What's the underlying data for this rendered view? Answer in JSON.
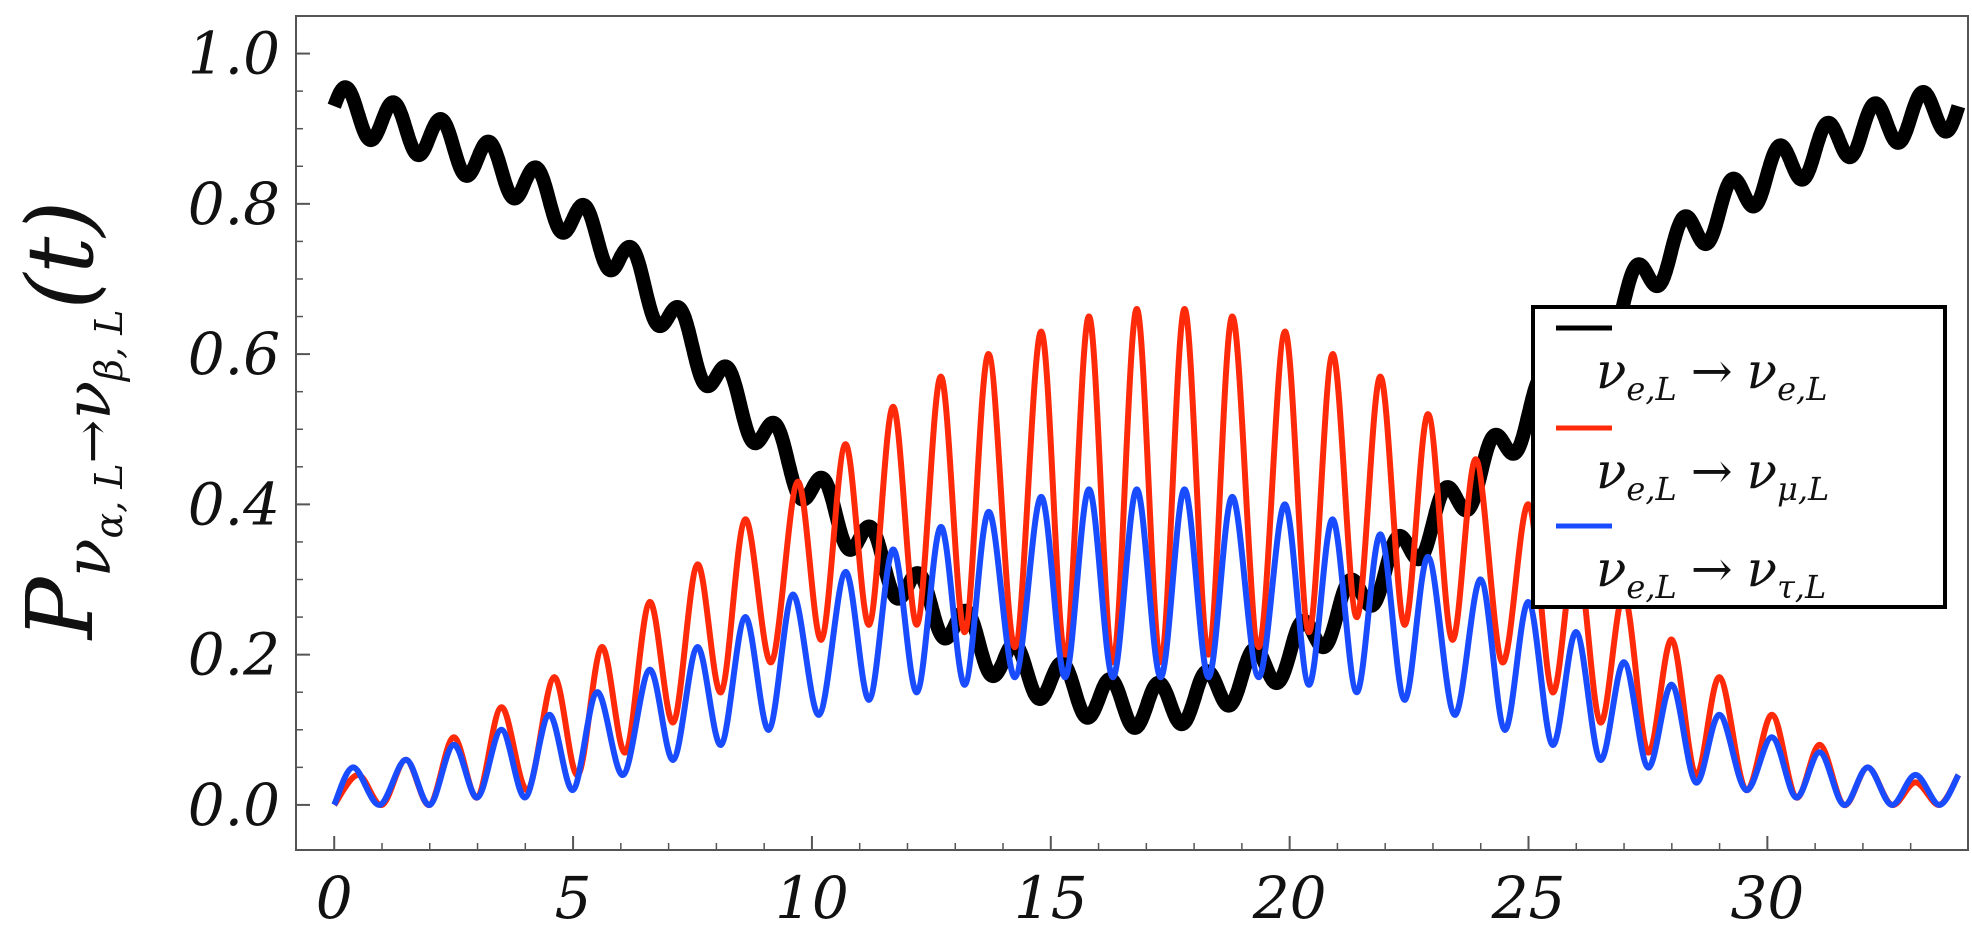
{
  "chart_data": {
    "type": "line",
    "xlabel": "",
    "ylabel": {
      "main": "P",
      "sub": "ν",
      "subsub1": "α, L",
      "arrow": "→",
      "sub2": "ν",
      "subsub2": "β, L",
      "arg": "(t)"
    },
    "xlim": [
      -0.8,
      34.2
    ],
    "ylim": [
      -0.06,
      1.05
    ],
    "x_ticks": [
      "0",
      "5",
      "10",
      "15",
      "20",
      "25",
      "30"
    ],
    "x_tick_values": [
      0,
      5,
      10,
      15,
      20,
      25,
      30
    ],
    "y_ticks": [
      "0.0",
      "0.2",
      "0.4",
      "0.6",
      "0.8",
      "1.0"
    ],
    "y_tick_values": [
      0,
      0.2,
      0.4,
      0.6,
      0.8,
      1.0
    ],
    "grid": false,
    "legend_position": "center-right",
    "series": [
      {
        "name": "ν_{e,L} → ν_{e,L}",
        "legend": {
          "a": "ν",
          "as": "e,L",
          "arrow": "→",
          "b": "ν",
          "bs": "e,L"
        },
        "color": "#000000",
        "envelope_x": [
          0,
          2,
          4,
          6,
          8,
          10,
          12,
          14,
          16,
          17,
          18,
          20,
          22,
          24,
          26,
          28,
          30,
          32,
          34
        ],
        "envelope_y": [
          0.93,
          0.89,
          0.83,
          0.73,
          0.57,
          0.42,
          0.29,
          0.19,
          0.14,
          0.13,
          0.14,
          0.2,
          0.31,
          0.44,
          0.6,
          0.74,
          0.84,
          0.9,
          0.93
        ],
        "fast_ripple_amplitude": 0.03,
        "period": 1.0
      },
      {
        "name": "ν_{e,L} → ν_{μ,L}",
        "legend": {
          "a": "ν",
          "as": "e,L",
          "arrow": "→",
          "b": "ν",
          "bs": "μ,L"
        },
        "color": "#ff2a0a",
        "peak_x": [
          0.5,
          1.5,
          2.5,
          3.5,
          4.6,
          5.6,
          6.6,
          7.6,
          8.6,
          9.7,
          10.7,
          11.7,
          12.7,
          13.7,
          14.8,
          15.8,
          16.8,
          17.8,
          18.8,
          19.9,
          20.9,
          21.9,
          22.9,
          23.9,
          25.0,
          26.0,
          27.0,
          28.0,
          29.0,
          30.1,
          31.1,
          32.1,
          33.1
        ],
        "peak_y": [
          0.04,
          0.06,
          0.09,
          0.13,
          0.17,
          0.21,
          0.27,
          0.32,
          0.38,
          0.43,
          0.48,
          0.53,
          0.57,
          0.6,
          0.63,
          0.65,
          0.66,
          0.66,
          0.65,
          0.63,
          0.6,
          0.57,
          0.52,
          0.46,
          0.4,
          0.34,
          0.28,
          0.22,
          0.17,
          0.12,
          0.08,
          0.05,
          0.03
        ],
        "trough_y": [
          0.0,
          0.0,
          0.01,
          0.02,
          0.04,
          0.07,
          0.11,
          0.15,
          0.19,
          0.22,
          0.24,
          0.24,
          0.23,
          0.21,
          0.2,
          0.19,
          0.19,
          0.2,
          0.21,
          0.23,
          0.25,
          0.24,
          0.22,
          0.19,
          0.15,
          0.11,
          0.07,
          0.04,
          0.02,
          0.01,
          0.0,
          0.0,
          0.0
        ]
      },
      {
        "name": "ν_{e,L} → ν_{τ,L}",
        "legend": {
          "a": "ν",
          "as": "e,L",
          "arrow": "→",
          "b": "ν",
          "bs": "τ,L"
        },
        "color": "#1a4cff",
        "peak_x": [
          0.4,
          1.5,
          2.5,
          3.5,
          4.5,
          5.5,
          6.6,
          7.6,
          8.6,
          9.6,
          10.7,
          11.7,
          12.7,
          13.7,
          14.8,
          15.8,
          16.8,
          17.8,
          18.8,
          19.9,
          20.9,
          21.9,
          22.9,
          24.0,
          25.0,
          26.0,
          27.0,
          28.0,
          29.0,
          30.1,
          31.1,
          32.1,
          33.1
        ],
        "peak_y": [
          0.05,
          0.06,
          0.08,
          0.1,
          0.12,
          0.15,
          0.18,
          0.21,
          0.25,
          0.28,
          0.31,
          0.34,
          0.37,
          0.39,
          0.41,
          0.42,
          0.42,
          0.42,
          0.41,
          0.4,
          0.38,
          0.36,
          0.33,
          0.3,
          0.27,
          0.23,
          0.19,
          0.16,
          0.12,
          0.09,
          0.07,
          0.05,
          0.04
        ],
        "trough_y": [
          0.0,
          0.0,
          0.01,
          0.01,
          0.02,
          0.04,
          0.06,
          0.08,
          0.1,
          0.12,
          0.14,
          0.15,
          0.16,
          0.17,
          0.17,
          0.17,
          0.17,
          0.17,
          0.17,
          0.16,
          0.15,
          0.14,
          0.12,
          0.1,
          0.08,
          0.06,
          0.05,
          0.03,
          0.02,
          0.01,
          0.0,
          0.0,
          0.0
        ]
      }
    ]
  }
}
